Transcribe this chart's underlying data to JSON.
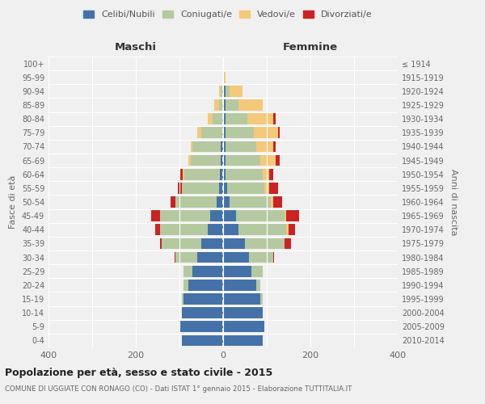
{
  "age_groups": [
    "0-4",
    "5-9",
    "10-14",
    "15-19",
    "20-24",
    "25-29",
    "30-34",
    "35-39",
    "40-44",
    "45-49",
    "50-54",
    "55-59",
    "60-64",
    "65-69",
    "70-74",
    "75-79",
    "80-84",
    "85-89",
    "90-94",
    "95-99",
    "100+"
  ],
  "birth_years": [
    "2010-2014",
    "2005-2009",
    "2000-2004",
    "1995-1999",
    "1990-1994",
    "1985-1989",
    "1980-1984",
    "1975-1979",
    "1970-1974",
    "1965-1969",
    "1960-1964",
    "1955-1959",
    "1950-1954",
    "1945-1949",
    "1940-1944",
    "1935-1939",
    "1930-1934",
    "1925-1929",
    "1920-1924",
    "1915-1919",
    "≤ 1914"
  ],
  "male": {
    "celibi": [
      95,
      100,
      95,
      90,
      80,
      70,
      60,
      50,
      35,
      30,
      15,
      10,
      8,
      5,
      5,
      0,
      0,
      0,
      0,
      0,
      0
    ],
    "coniugati": [
      0,
      0,
      0,
      5,
      10,
      20,
      50,
      90,
      110,
      115,
      95,
      85,
      80,
      70,
      65,
      50,
      25,
      10,
      5,
      0,
      0
    ],
    "vedovi": [
      0,
      0,
      0,
      0,
      0,
      0,
      0,
      0,
      0,
      0,
      0,
      0,
      5,
      5,
      5,
      10,
      10,
      10,
      5,
      0,
      0
    ],
    "divorziati": [
      0,
      0,
      0,
      0,
      0,
      0,
      2,
      5,
      10,
      20,
      10,
      8,
      5,
      0,
      0,
      0,
      0,
      0,
      0,
      0,
      0
    ]
  },
  "female": {
    "nubili": [
      90,
      95,
      90,
      85,
      75,
      65,
      60,
      50,
      35,
      30,
      15,
      10,
      5,
      5,
      5,
      5,
      5,
      5,
      5,
      0,
      0
    ],
    "coniugate": [
      0,
      0,
      0,
      5,
      10,
      25,
      55,
      90,
      110,
      110,
      95,
      85,
      85,
      80,
      70,
      65,
      50,
      30,
      10,
      0,
      0
    ],
    "vedove": [
      0,
      0,
      0,
      0,
      0,
      0,
      0,
      0,
      5,
      5,
      5,
      10,
      15,
      35,
      40,
      55,
      60,
      55,
      30,
      5,
      2
    ],
    "divorziate": [
      0,
      0,
      0,
      0,
      0,
      0,
      2,
      15,
      15,
      30,
      20,
      20,
      10,
      10,
      5,
      5,
      5,
      0,
      0,
      0,
      0
    ]
  },
  "colors": {
    "celibi": "#4472a8",
    "coniugati": "#b5c9a0",
    "vedovi": "#f5c97a",
    "divorziati": "#cc2222"
  },
  "xlim": 400,
  "title": "Popolazione per età, sesso e stato civile - 2015",
  "subtitle": "COMUNE DI UGGIATE CON RONAGO (CO) - Dati ISTAT 1° gennaio 2015 - Elaborazione TUTTITALIA.IT",
  "background_color": "#f0f0f0"
}
